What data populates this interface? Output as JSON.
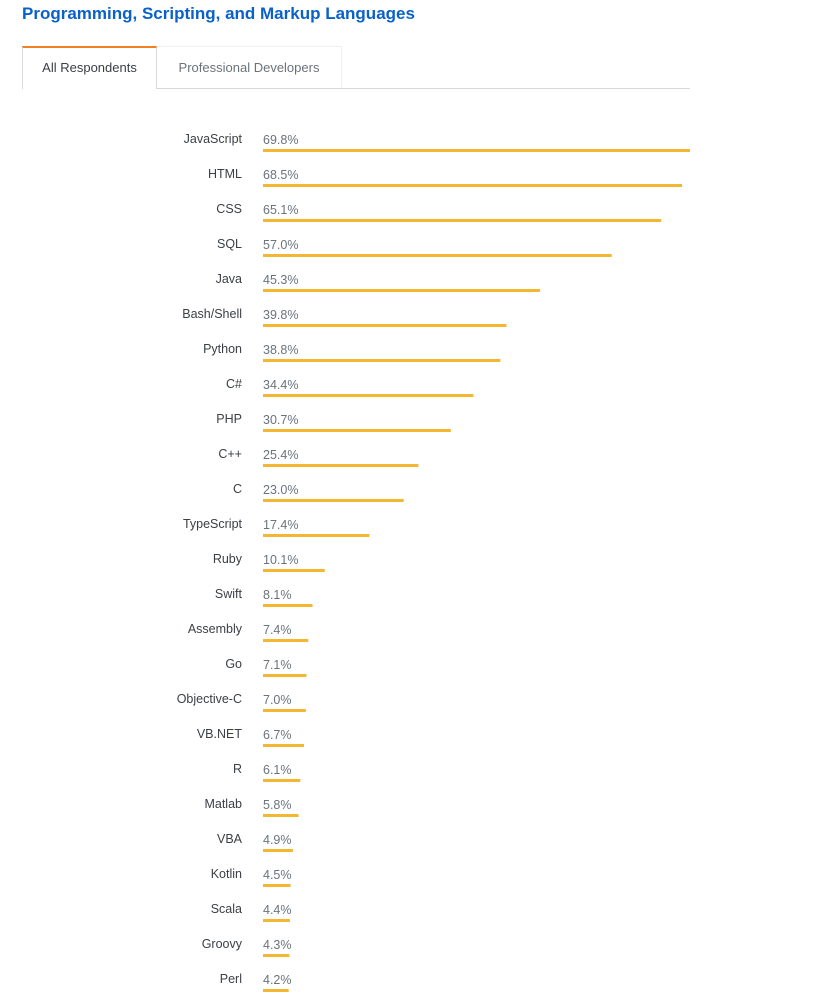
{
  "title": "Programming, Scripting, and Markup Languages",
  "tabs": [
    {
      "label": "All Respondents",
      "active": true
    },
    {
      "label": "Professional Developers",
      "active": false
    }
  ],
  "colors": {
    "bar": "#f4b731",
    "title": "#0a61c9",
    "label": "#3b4045",
    "value": "#6a737c",
    "tab_accent": "#f48024"
  },
  "chart_data": {
    "type": "bar",
    "orientation": "horizontal",
    "unit": "%",
    "xlim": [
      0,
      69.8
    ],
    "categories": [
      "JavaScript",
      "HTML",
      "CSS",
      "SQL",
      "Java",
      "Bash/Shell",
      "Python",
      "C#",
      "PHP",
      "C++",
      "C",
      "TypeScript",
      "Ruby",
      "Swift",
      "Assembly",
      "Go",
      "Objective-C",
      "VB.NET",
      "R",
      "Matlab",
      "VBA",
      "Kotlin",
      "Scala",
      "Groovy",
      "Perl"
    ],
    "values": [
      69.8,
      68.5,
      65.1,
      57.0,
      45.3,
      39.8,
      38.8,
      34.4,
      30.7,
      25.4,
      23.0,
      17.4,
      10.1,
      8.1,
      7.4,
      7.1,
      7.0,
      6.7,
      6.1,
      5.8,
      4.9,
      4.5,
      4.4,
      4.3,
      4.2
    ],
    "value_labels": [
      "69.8%",
      "68.5%",
      "65.1%",
      "57.0%",
      "45.3%",
      "39.8%",
      "38.8%",
      "34.4%",
      "30.7%",
      "25.4%",
      "23.0%",
      "17.4%",
      "10.1%",
      "8.1%",
      "7.4%",
      "7.1%",
      "7.0%",
      "6.7%",
      "6.1%",
      "5.8%",
      "4.9%",
      "4.5%",
      "4.4%",
      "4.3%",
      "4.2%"
    ]
  }
}
